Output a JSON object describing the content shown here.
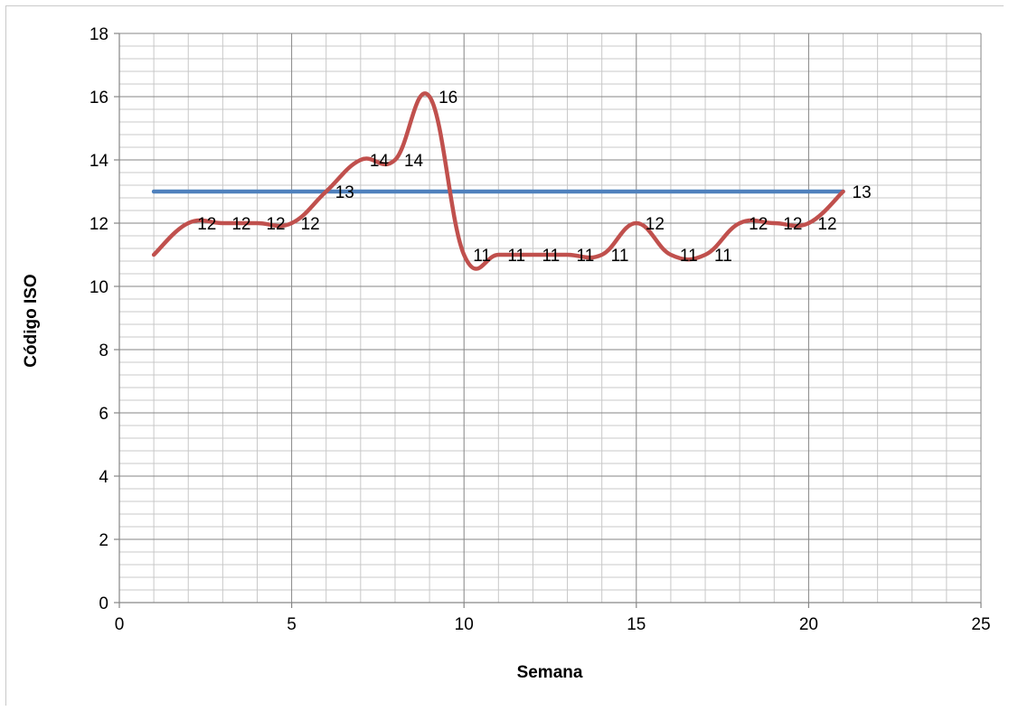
{
  "chart_data": {
    "type": "line",
    "xlabel": "Semana",
    "ylabel": "Código ISO",
    "xlim": [
      0,
      25
    ],
    "ylim": [
      0,
      18
    ],
    "x_ticks": [
      "0",
      "5",
      "10",
      "15",
      "20",
      "25"
    ],
    "y_ticks": [
      "0",
      "2",
      "4",
      "6",
      "8",
      "10",
      "12",
      "14",
      "16",
      "18"
    ],
    "grid": true,
    "legend": "none",
    "colors": {
      "measured": "#c0504d",
      "target": "#4f81bd",
      "grid_major": "#868686",
      "grid_minor": "#c8c8c8"
    },
    "series": [
      {
        "x": [
          1,
          2,
          3,
          4,
          5,
          6,
          7,
          8,
          9,
          10,
          11,
          12,
          13,
          14,
          15,
          16,
          17,
          18,
          19,
          20,
          21
        ],
        "values": [
          11,
          12,
          12,
          12,
          12,
          13,
          14,
          14,
          16,
          11,
          11,
          11,
          11,
          11,
          12,
          11,
          11,
          12,
          12,
          12,
          13
        ],
        "data_labels": [
          "",
          "12",
          "12",
          "12",
          "12",
          "13",
          "14",
          "14",
          "16",
          "11",
          "11",
          "11",
          "11",
          "11",
          "12",
          "11",
          "11",
          "12",
          "12",
          "12",
          "13"
        ]
      },
      {
        "x": [
          1,
          21
        ],
        "values": [
          13,
          13
        ]
      }
    ]
  }
}
